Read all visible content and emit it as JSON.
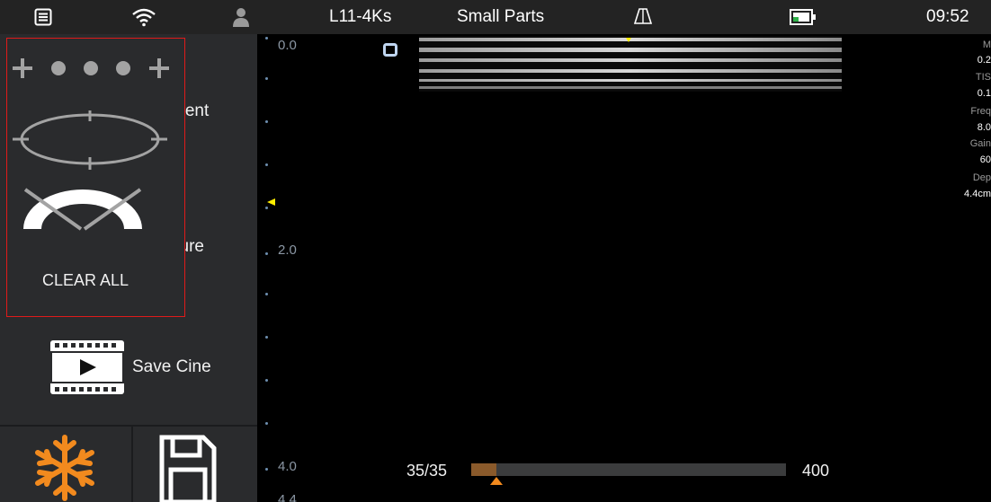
{
  "status_bar": {
    "menu_icon": "list-menu-icon",
    "wifi_icon": "wifi-icon",
    "user_icon": "user-icon",
    "probe": "L11-4Ks",
    "preset": "Small Parts",
    "probe_icon": "probe-icon",
    "battery_icon": "battery-icon",
    "time": "09:52"
  },
  "left_menu": {
    "item_partial_1": "ment",
    "item_partial_2": "sure",
    "save_cine_label": "Save Cine",
    "film_icon": "film-play-icon",
    "freeze_icon": "snowflake-icon",
    "save_icon": "floppy-disk-icon"
  },
  "measure_popup": {
    "distance_icon": "distance-measure-icon",
    "ellipse_icon": "ellipse-measure-icon",
    "angle_icon": "angle-measure-icon",
    "clear_all": "CLEAR ALL"
  },
  "depth_scale": {
    "labels": [
      "0.0",
      "2.0",
      "4.0",
      "4.4"
    ]
  },
  "params": {
    "labels": [
      "M",
      "TIS",
      "Freq",
      "Gain",
      "Dep"
    ],
    "values": [
      "0.2",
      "0.1",
      "8.0",
      "60",
      "4.4cm"
    ]
  },
  "cine": {
    "frame_counter": "35/35",
    "total": "400",
    "progress": 0.08,
    "accent": "#f28a1e"
  },
  "colors": {
    "status_bar_bg": "#232323",
    "panel_bg": "#2a2b2d",
    "highlight_border": "#e01a1a",
    "freeze_orange": "#f28a1e",
    "marker_yellow": "#ffee00"
  }
}
